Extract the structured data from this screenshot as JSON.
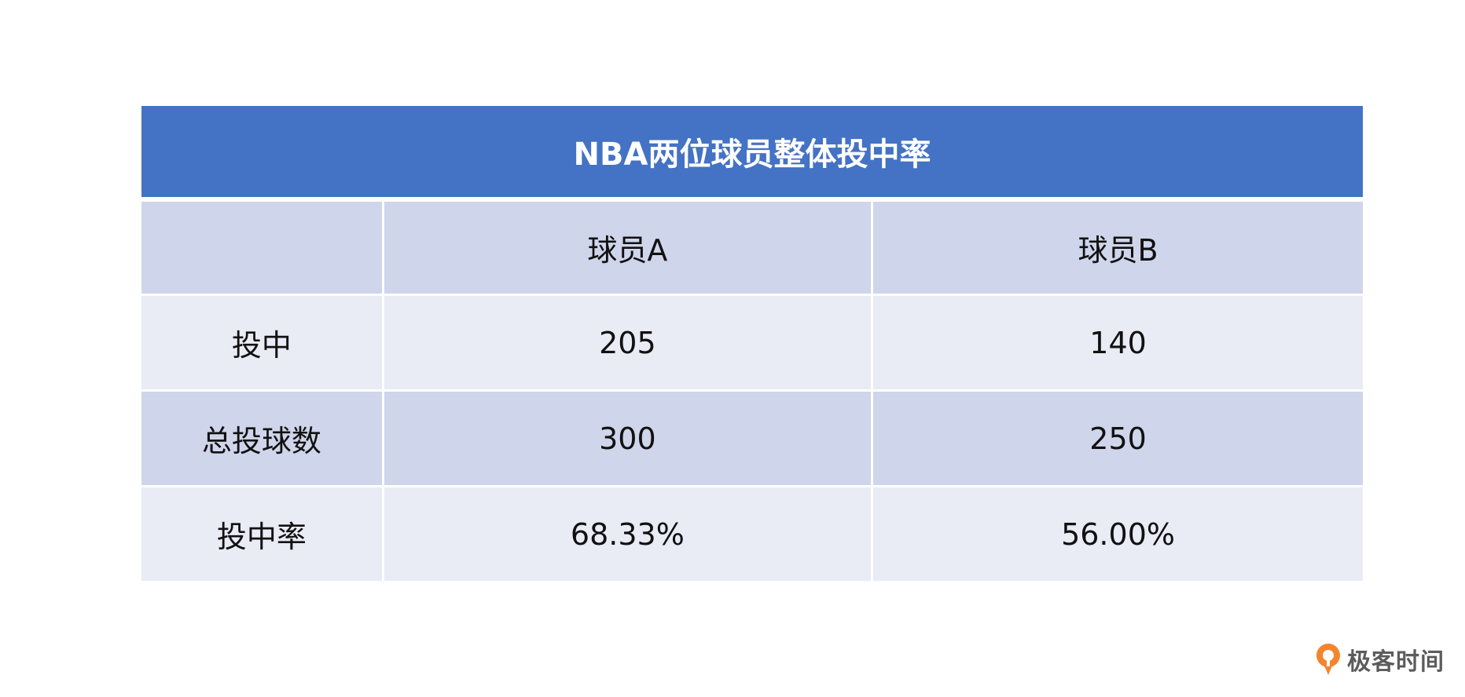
{
  "table": {
    "title": "NBA两位球员整体投中率",
    "columns": [
      "",
      "球员A",
      "球员B"
    ],
    "rows": [
      {
        "label": "投中",
        "values": [
          "205",
          "140"
        ]
      },
      {
        "label": "总投球数",
        "values": [
          "300",
          "250"
        ]
      },
      {
        "label": "投中率",
        "values": [
          "68.33%",
          "56.00%"
        ]
      }
    ]
  },
  "logo": {
    "text": "极客时间"
  },
  "colors": {
    "title_bg": "#4472c4",
    "row_dark": "#cfd5ea",
    "row_light": "#e9ebf5",
    "logo_orange": "#f5842c"
  }
}
